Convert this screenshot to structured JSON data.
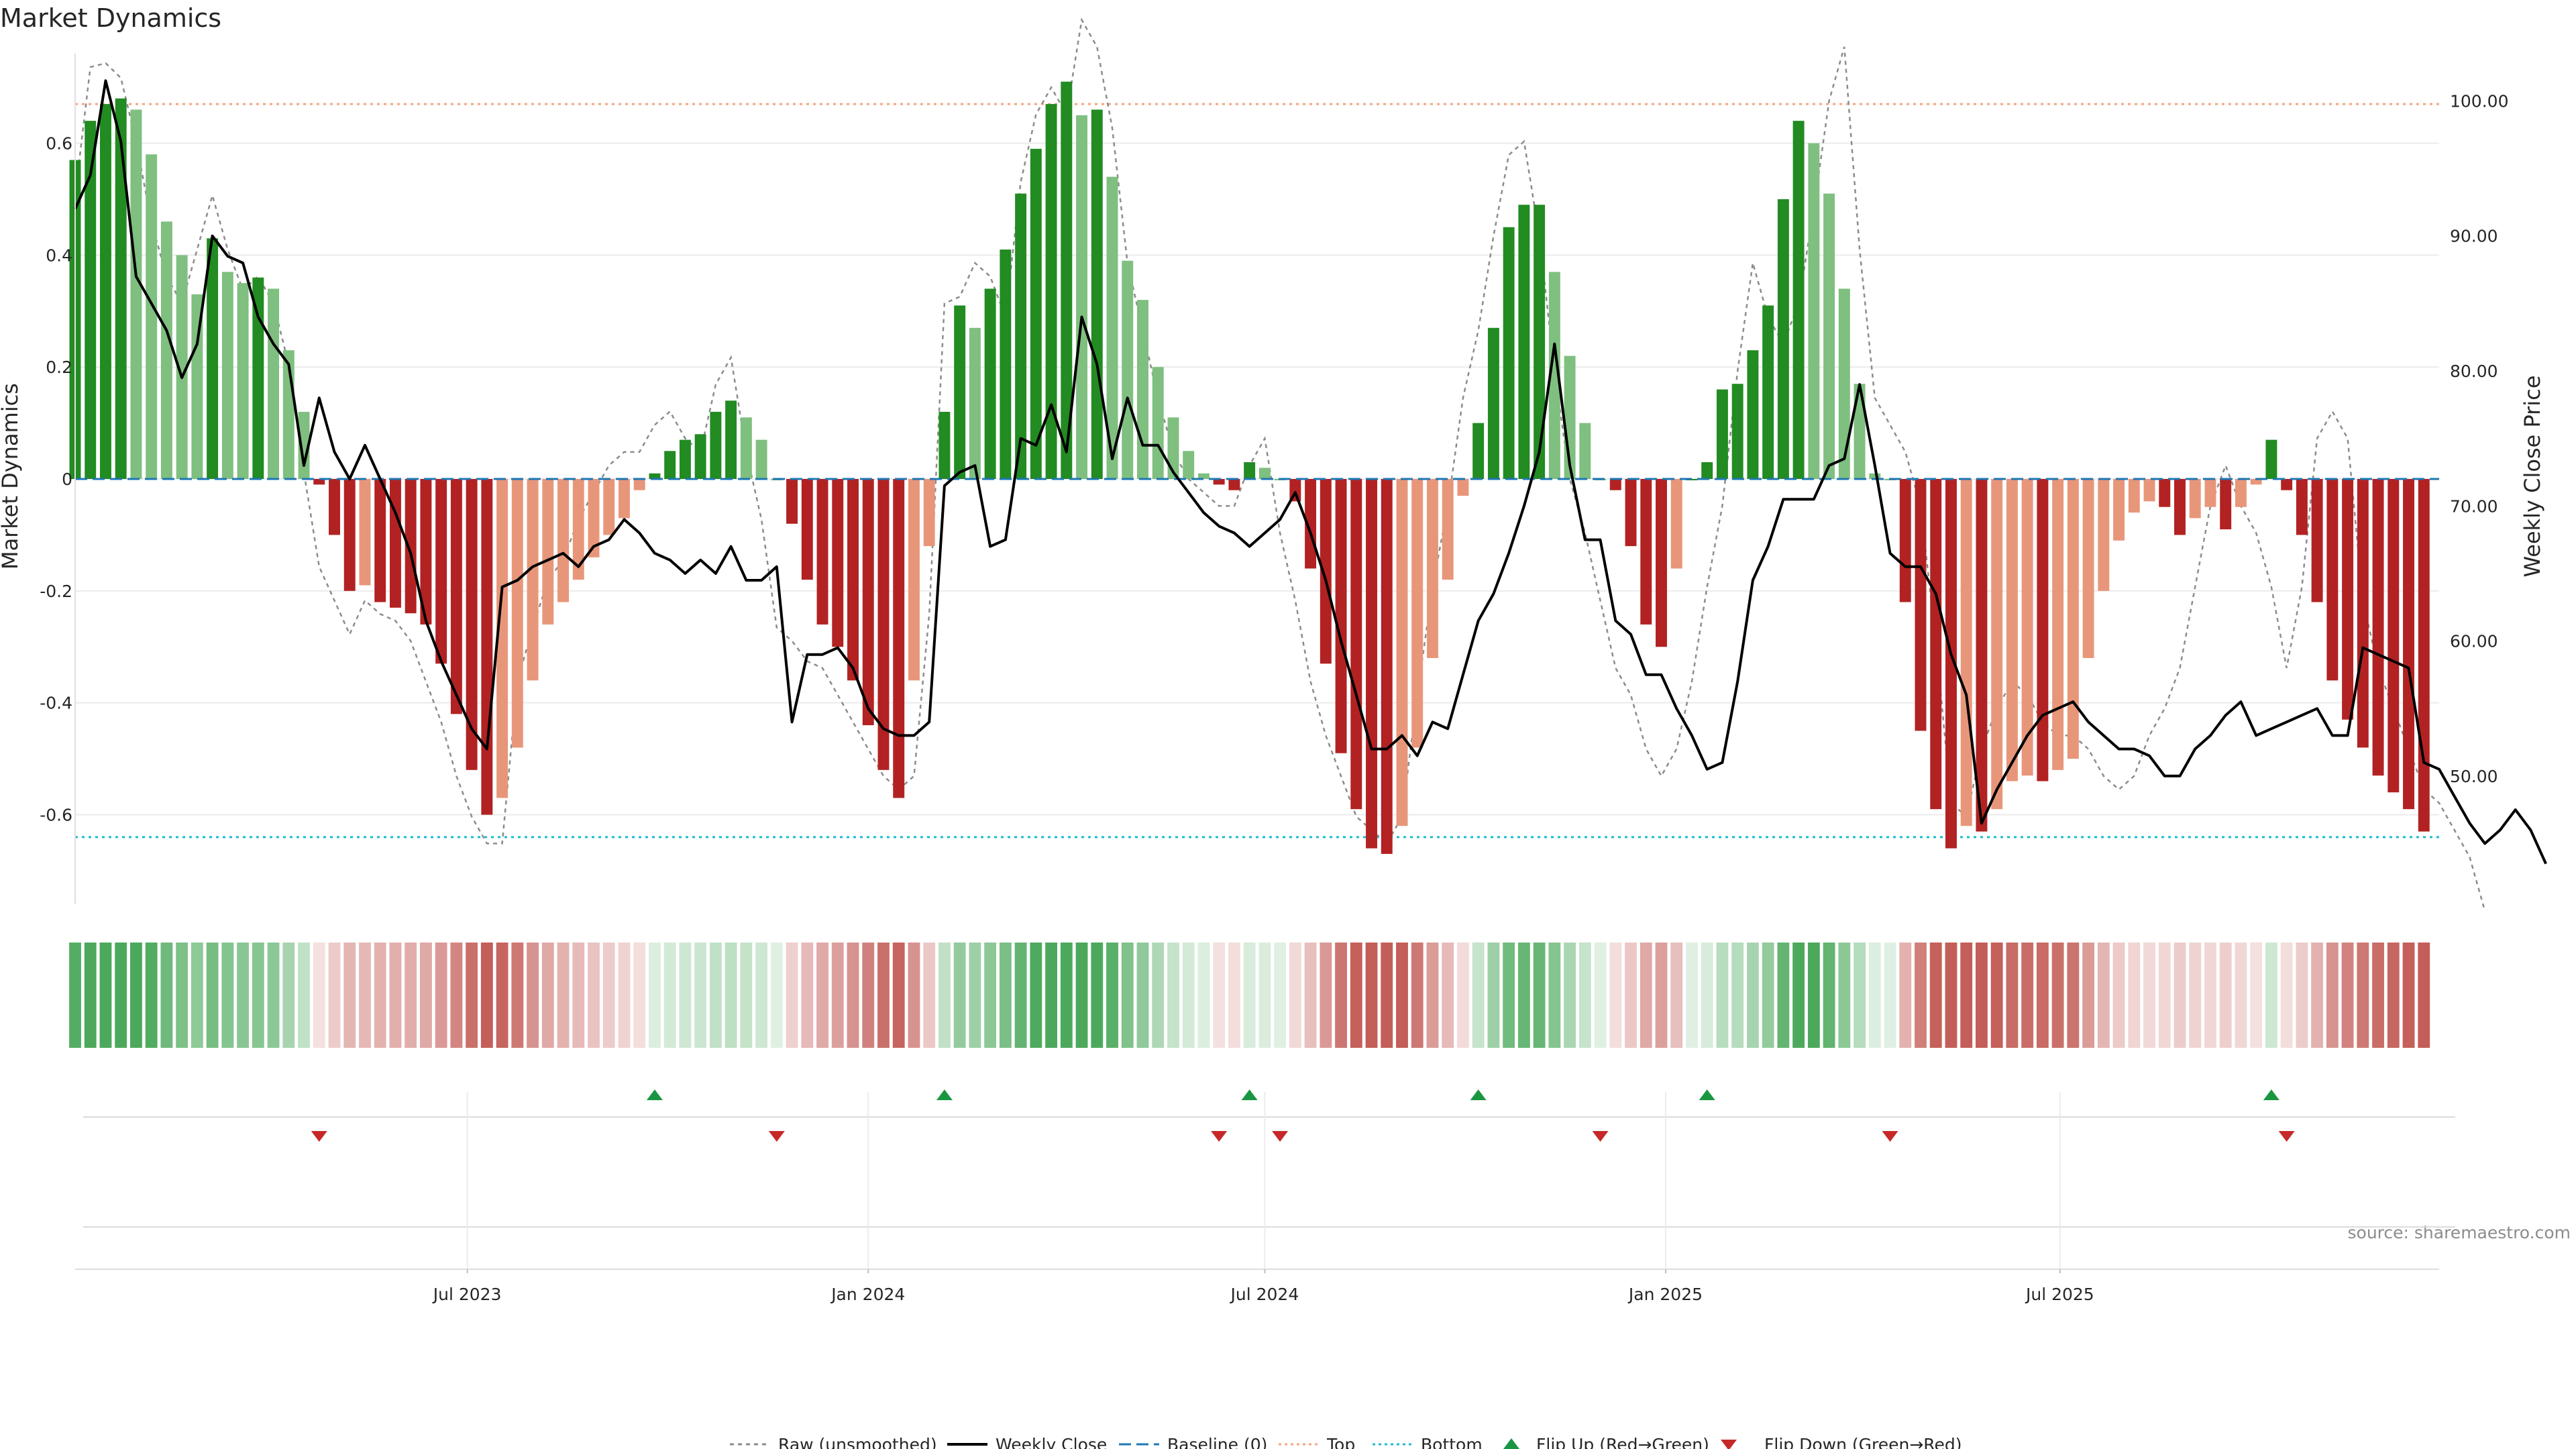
{
  "chart_data": {
    "type": "bar",
    "title": "Market Dynamics",
    "ylabel_left": "Market Dynamics",
    "ylabel_right": "Weekly Close Price",
    "source": "source: sharemaestro.com",
    "ylim_left": [
      -0.76,
      0.76
    ],
    "ylim_right": [
      40.5,
      103.5
    ],
    "left_ticks": [
      -0.6,
      -0.4,
      -0.2,
      0,
      0.2,
      0.4,
      0.6
    ],
    "left_tick_labels": [
      "-0.6",
      "-0.4",
      "-0.2",
      "0",
      "0.2",
      "0.4",
      "0.6"
    ],
    "right_ticks": [
      50,
      60,
      70,
      80,
      90,
      100
    ],
    "right_tick_labels": [
      "50.00",
      "60.00",
      "70.00",
      "80.00",
      "90.00",
      "100.00"
    ],
    "grid": true,
    "x_start": "2023-01-02",
    "x_end": "2025-12-22",
    "x_ticks": [
      "2023-07-01",
      "2024-01-01",
      "2024-07-01",
      "2025-01-01",
      "2025-07-01"
    ],
    "x_tick_labels": [
      "Jul 2023",
      "Jan 2024",
      "Jul 2024",
      "Jan 2025",
      "Jul 2025"
    ],
    "top_level": 0.67,
    "bottom_level": -0.64,
    "baseline": 0,
    "colors": {
      "strong_up": "#228b22",
      "weak_up": "#7fbf7f",
      "strong_down": "#b22222",
      "weak_down": "#e8967a",
      "close": "#000000",
      "raw": "#8c8c8c",
      "baseline": "#1f77b4",
      "top": "#f4a582",
      "bottom": "#17becf",
      "flip_up": "#1a9641",
      "flip_down": "#c62828"
    },
    "series": [
      {
        "name": "Market Dynamics",
        "values": [
          0.57,
          0.64,
          0.67,
          0.68,
          0.66,
          0.58,
          0.46,
          0.4,
          0.33,
          0.43,
          0.37,
          0.35,
          0.36,
          0.34,
          0.23,
          0.12,
          -0.01,
          -0.1,
          -0.2,
          -0.19,
          -0.22,
          -0.23,
          -0.24,
          -0.26,
          -0.33,
          -0.42,
          -0.52,
          -0.6,
          -0.57,
          -0.48,
          -0.36,
          -0.26,
          -0.22,
          -0.18,
          -0.14,
          -0.1,
          -0.07,
          -0.02,
          0.01,
          0.05,
          0.07,
          0.08,
          0.12,
          0.14,
          0.11,
          0.07,
          0,
          -0.08,
          -0.18,
          -0.26,
          -0.3,
          -0.36,
          -0.44,
          -0.52,
          -0.57,
          -0.36,
          -0.12,
          0.12,
          0.31,
          0.27,
          0.34,
          0.41,
          0.51,
          0.59,
          0.67,
          0.71,
          0.65,
          0.66,
          0.54,
          0.39,
          0.32,
          0.2,
          0.11,
          0.05,
          0.01,
          -0.01,
          -0.02,
          0.03,
          0.02,
          0,
          -0.04,
          -0.16,
          -0.33,
          -0.49,
          -0.59,
          -0.66,
          -0.67,
          -0.62,
          -0.48,
          -0.32,
          -0.18,
          -0.03,
          0.1,
          0.27,
          0.45,
          0.49,
          0.49,
          0.37,
          0.22,
          0.1,
          0,
          -0.02,
          -0.12,
          -0.26,
          -0.3,
          -0.16,
          0,
          0.03,
          0.16,
          0.17,
          0.23,
          0.31,
          0.5,
          0.64,
          0.6,
          0.51,
          0.34,
          0.17,
          0.01,
          0,
          -0.22,
          -0.45,
          -0.59,
          -0.66,
          -0.62,
          -0.63,
          -0.59,
          -0.54,
          -0.53,
          -0.54,
          -0.52,
          -0.5,
          -0.32,
          -0.2,
          -0.11,
          -0.06,
          -0.04,
          -0.05,
          -0.1,
          -0.07,
          -0.05,
          -0.09,
          -0.05,
          -0.01,
          0.07,
          -0.02,
          -0.1,
          -0.22,
          -0.36,
          -0.43,
          -0.48,
          -0.53,
          -0.56,
          -0.59,
          -0.63
        ]
      },
      {
        "name": "Weekly Close",
        "values": [
          92,
          94.5,
          101.5,
          97,
          87,
          85,
          83,
          79.5,
          82,
          90,
          88.5,
          88,
          84,
          82,
          80.5,
          73,
          78,
          74,
          72,
          74.5,
          72,
          69.5,
          66.5,
          61.5,
          58.5,
          56,
          53.5,
          52,
          64,
          64.5,
          65.5,
          66,
          66.5,
          65.5,
          67,
          67.5,
          69,
          68,
          66.5,
          66,
          65,
          66,
          65,
          67,
          64.5,
          64.5,
          65.5,
          54,
          59,
          59,
          59.5,
          58,
          55,
          53.5,
          53,
          53,
          54,
          71.5,
          72.5,
          73,
          67,
          67.5,
          75,
          74.5,
          77.5,
          74,
          84,
          80.5,
          73.5,
          78,
          74.5,
          74.5,
          72.5,
          71,
          69.5,
          68.5,
          68,
          67,
          68,
          69,
          71,
          68,
          64.5,
          60,
          56,
          52,
          52,
          53,
          51.5,
          54,
          53.5,
          57.5,
          61.5,
          63.5,
          66.5,
          70,
          74,
          82,
          73,
          67.5,
          67.5,
          61.5,
          60.5,
          57.5,
          57.5,
          55,
          53,
          50.5,
          51,
          57,
          64.5,
          67,
          70.5,
          70.5,
          70.5,
          73,
          73.5,
          79,
          73,
          66.5,
          65.5,
          65.5,
          63.5,
          59,
          56,
          46.5,
          49,
          51,
          53,
          54.5,
          55,
          55.5,
          54,
          53,
          52,
          52,
          51.5,
          50,
          50,
          52,
          53,
          54.5,
          55.5,
          53,
          53.5,
          54,
          54.5,
          55,
          53,
          53,
          59.5,
          59,
          58.5,
          58,
          51,
          50.5,
          48.5,
          46.5,
          45,
          46,
          47.5,
          46,
          43.5
        ]
      },
      {
        "name": "Raw (unsmoothed)",
        "values": [
          93,
          102.5,
          102.8,
          101.7,
          97,
          91,
          87,
          85,
          89,
          93,
          89,
          86,
          87,
          85,
          80.5,
          72.5,
          65.5,
          63,
          60.5,
          63,
          62,
          61.5,
          60,
          57,
          54,
          50,
          47,
          45,
          45,
          57,
          61,
          64.5,
          66,
          69,
          71,
          73,
          74,
          74,
          76,
          77,
          75,
          74,
          79,
          81,
          74,
          69,
          61,
          60,
          58.5,
          58,
          56,
          54,
          52,
          50,
          49,
          50,
          62,
          85,
          85.5,
          88,
          87,
          84,
          94,
          99,
          101,
          99,
          106,
          104,
          98,
          88,
          83,
          78,
          74,
          72,
          71,
          70,
          70,
          73,
          75,
          68,
          63,
          57,
          53,
          50,
          47,
          46,
          45,
          47,
          56,
          64,
          70,
          78,
          83,
          90,
          96,
          97,
          90,
          80,
          72,
          68,
          63,
          58,
          56,
          52,
          50,
          52,
          57,
          64,
          70,
          80,
          88,
          84,
          82,
          85,
          92,
          100,
          104,
          89,
          78,
          76,
          74,
          70,
          60,
          48,
          47,
          52,
          55,
          57,
          56,
          54,
          53,
          53,
          52,
          50,
          49,
          50,
          53,
          55,
          58,
          64,
          70,
          73,
          70,
          68,
          64,
          58,
          64,
          75,
          77,
          75,
          63,
          58,
          55,
          52,
          49,
          48,
          46,
          44,
          40
        ]
      }
    ]
  },
  "legend": {
    "raw": "Raw (unsmoothed)",
    "close": "Weekly Close",
    "baseline": "Baseline (0)",
    "top": "Top",
    "bottom": "Bottom",
    "flip_up": "Flip Up (Red→Green)",
    "flip_down": "Flip Down (Green→Red)"
  }
}
